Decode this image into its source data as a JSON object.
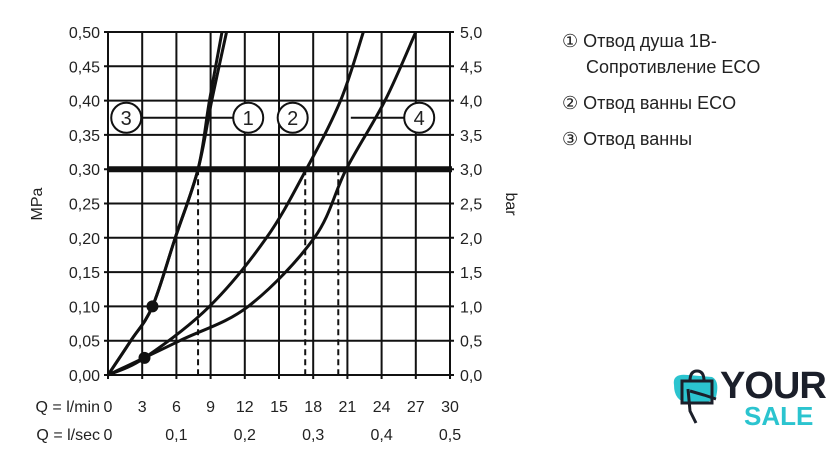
{
  "chart_data": {
    "type": "line",
    "xlabel_min": "Q = l/min",
    "xlabel_sec": "Q = l/sec",
    "ylabel_left": "MPa",
    "ylabel_right": "bar",
    "xlim": [
      0,
      30
    ],
    "ylim": [
      0,
      0.5
    ],
    "grid": true,
    "x_ticks_min": [
      "0",
      "3",
      "6",
      "9",
      "12",
      "15",
      "18",
      "21",
      "24",
      "27",
      "30"
    ],
    "x_ticks_sec": [
      {
        "v": 0,
        "t": "0"
      },
      {
        "v": 6,
        "t": "0,1"
      },
      {
        "v": 12,
        "t": "0,2"
      },
      {
        "v": 18,
        "t": "0,3"
      },
      {
        "v": 24,
        "t": "0,4"
      },
      {
        "v": 30,
        "t": "0,5"
      }
    ],
    "y_ticks_left": [
      "0,00",
      "0,05",
      "0,10",
      "0,15",
      "0,20",
      "0,25",
      "0,30",
      "0,35",
      "0,40",
      "0,45",
      "0,50"
    ],
    "y_ticks_right": [
      "0,0",
      "0,5",
      "1,0",
      "1,5",
      "2,0",
      "2,5",
      "3,0",
      "3,5",
      "4,0",
      "4,5",
      "5,0"
    ],
    "reference_line": {
      "y": 0.3
    },
    "dashed_markers_x": [
      7.9,
      17.3,
      20.2
    ],
    "series": [
      {
        "name": "3",
        "points": [
          [
            0,
            0
          ],
          [
            2,
            0.05
          ],
          [
            3.9,
            0.1
          ],
          [
            5.9,
            0.2
          ],
          [
            7.9,
            0.3
          ],
          [
            8.9,
            0.4
          ],
          [
            10.0,
            0.5
          ]
        ]
      },
      {
        "name": "1",
        "points": [
          [
            0,
            0
          ],
          [
            2,
            0.05
          ],
          [
            3.9,
            0.1
          ],
          [
            5.9,
            0.2
          ],
          [
            7.9,
            0.3
          ],
          [
            9.1,
            0.4
          ],
          [
            10.4,
            0.5
          ]
        ]
      },
      {
        "name": "2",
        "points": [
          [
            0,
            0
          ],
          [
            3.2,
            0.025
          ],
          [
            8.9,
            0.1
          ],
          [
            13.9,
            0.2
          ],
          [
            17.4,
            0.3
          ],
          [
            20.4,
            0.4
          ],
          [
            22.4,
            0.5
          ]
        ]
      },
      {
        "name": "4",
        "points": [
          [
            0,
            0
          ],
          [
            6.3,
            0.05
          ],
          [
            12.3,
            0.1
          ],
          [
            18.1,
            0.2
          ],
          [
            20.9,
            0.3
          ],
          [
            24.3,
            0.4
          ],
          [
            27.0,
            0.5
          ]
        ]
      }
    ],
    "dots": [
      [
        3.9,
        0.1
      ],
      [
        3.2,
        0.025
      ]
    ],
    "labels": [
      {
        "t": "3",
        "x": 1.6
      },
      {
        "t": "1",
        "x": 12.3
      },
      {
        "t": "2",
        "x": 16.2
      },
      {
        "t": "4",
        "x": 27.3
      }
    ],
    "label_y": 0.375
  },
  "legend": [
    {
      "num": "①",
      "text": "Отвод душа 1B-",
      "text2": "Сопротивление  ECO"
    },
    {
      "num": "②",
      "text": "Отвод ванны ECO"
    },
    {
      "num": "③",
      "text": "Отвод ванны"
    }
  ],
  "logo": {
    "line1": "YOUR",
    "line2": "SALE",
    "colors": {
      "accent": "#2bc4cf",
      "dark": "#1b1f2a"
    }
  }
}
